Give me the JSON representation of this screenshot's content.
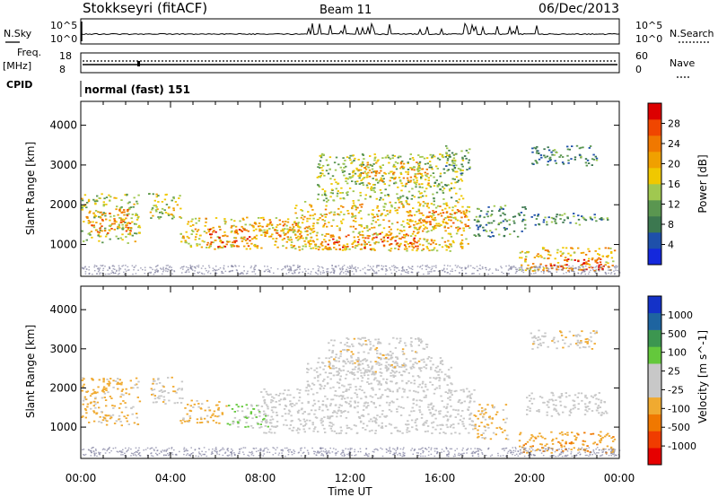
{
  "header": {
    "station": "Stokkseyri (fitACF)",
    "beam": "Beam 11",
    "date": "06/Dec/2013"
  },
  "top_panels": {
    "nsky_label": "N.Sky",
    "nsearch_label": "N.Search",
    "nsky_ticks": [
      "10^5",
      "10^0"
    ],
    "nsky_right_ticks": [
      "10^5",
      "10^0"
    ],
    "freq_label_1": "Freq.",
    "freq_label_2": "[MHz]",
    "freq_ticks": [
      "18",
      "8"
    ],
    "nave_label": "Nave",
    "nave_ticks": [
      "60",
      "0"
    ],
    "cpid_label": "CPID",
    "cpid_value": "normal (fast) 151"
  },
  "colors": {
    "power_scale": [
      "#1428dc",
      "#1e50aa",
      "#3c7850",
      "#5a9650",
      "#a0c850",
      "#f0c800",
      "#f0a000",
      "#f07800",
      "#f04600",
      "#dc0000"
    ],
    "velocity_scale": [
      "#e60000",
      "#f03c00",
      "#f07800",
      "#f0aa30",
      "#c8c8c8",
      "#c8c8c8",
      "#64c83c",
      "#3c9650",
      "#1e64a0",
      "#1432c8"
    ],
    "noise_band": "#8080a0"
  },
  "chart_data": [
    {
      "type": "heatmap",
      "title": "",
      "xlabel": "Time UT",
      "ylabel": "Slant Range [km]",
      "x_ticks": [
        "00:00",
        "04:00",
        "08:00",
        "12:00",
        "16:00",
        "20:00",
        "00:00"
      ],
      "xlim": [
        0,
        24
      ],
      "y_ticks": [
        "1000",
        "2000",
        "3000",
        "4000"
      ],
      "ylim": [
        200,
        4600
      ],
      "colorbar": {
        "label": "Power [dB]",
        "ticks": [
          "4",
          "8",
          "12",
          "16",
          "20",
          "24",
          "28"
        ],
        "range": [
          0,
          30
        ]
      },
      "regions": [
        {
          "t0": 0.0,
          "t1": 2.6,
          "r0": 1050,
          "r1": 2300,
          "value": 14
        },
        {
          "t0": 0.2,
          "t1": 2.2,
          "r0": 1300,
          "r1": 1900,
          "value": 22
        },
        {
          "t0": 3.0,
          "t1": 4.5,
          "r0": 1600,
          "r1": 2300,
          "value": 15
        },
        {
          "t0": 4.4,
          "t1": 10.5,
          "r0": 900,
          "r1": 1700,
          "value": 17
        },
        {
          "t0": 5.5,
          "t1": 7.5,
          "r0": 950,
          "r1": 1400,
          "value": 25
        },
        {
          "t0": 7.6,
          "t1": 9.8,
          "r0": 1200,
          "r1": 1600,
          "value": 21
        },
        {
          "t0": 9.5,
          "t1": 17.3,
          "r0": 850,
          "r1": 2100,
          "value": 17
        },
        {
          "t0": 10.5,
          "t1": 15.0,
          "r0": 900,
          "r1": 1300,
          "value": 23
        },
        {
          "t0": 14.5,
          "t1": 17.3,
          "r0": 1400,
          "r1": 1900,
          "value": 21
        },
        {
          "t0": 10.5,
          "t1": 17.0,
          "r0": 2100,
          "r1": 3300,
          "value": 13
        },
        {
          "t0": 12.3,
          "t1": 15.5,
          "r0": 2500,
          "r1": 3100,
          "value": 19
        },
        {
          "t0": 16.2,
          "t1": 17.3,
          "r0": 2800,
          "r1": 3500,
          "value": 10
        },
        {
          "t0": 17.5,
          "t1": 19.8,
          "r0": 1200,
          "r1": 2000,
          "value": 9
        },
        {
          "t0": 19.5,
          "t1": 23.8,
          "r0": 350,
          "r1": 950,
          "value": 18
        },
        {
          "t0": 20.5,
          "t1": 23.3,
          "r0": 350,
          "r1": 650,
          "value": 27
        },
        {
          "t0": 19.8,
          "t1": 23.5,
          "r0": 1500,
          "r1": 1800,
          "value": 9
        },
        {
          "t0": 20.0,
          "t1": 23.0,
          "r0": 3000,
          "r1": 3500,
          "value": 8
        }
      ]
    },
    {
      "type": "heatmap",
      "title": "",
      "xlabel": "Time UT",
      "ylabel": "Slant Range [km]",
      "x_ticks": [
        "00:00",
        "04:00",
        "08:00",
        "12:00",
        "16:00",
        "20:00",
        "00:00"
      ],
      "xlim": [
        0,
        24
      ],
      "y_ticks": [
        "1000",
        "2000",
        "3000",
        "4000"
      ],
      "ylim": [
        200,
        4600
      ],
      "colorbar": {
        "label": "Velocity [m s^-1]",
        "ticks": [
          "1000",
          "500",
          "100",
          "25",
          "-25",
          "-100",
          "-500",
          "-1000"
        ],
        "range": [
          -1200,
          1200
        ]
      },
      "regions": [
        {
          "t0": 0.0,
          "t1": 2.6,
          "r0": 1050,
          "r1": 2300,
          "value": -300
        },
        {
          "t0": 3.0,
          "t1": 4.5,
          "r0": 1600,
          "r1": 2300,
          "value": -150
        },
        {
          "t0": 4.4,
          "t1": 6.5,
          "r0": 1100,
          "r1": 1700,
          "value": -300
        },
        {
          "t0": 6.5,
          "t1": 8.5,
          "r0": 1000,
          "r1": 1600,
          "value": 200
        },
        {
          "t0": 8.0,
          "t1": 17.5,
          "r0": 850,
          "r1": 2000,
          "value": 0
        },
        {
          "t0": 10.0,
          "t1": 16.5,
          "r0": 2000,
          "r1": 2800,
          "value": 0
        },
        {
          "t0": 11.0,
          "t1": 15.5,
          "r0": 2400,
          "r1": 3300,
          "value": -150
        },
        {
          "t0": 17.5,
          "t1": 19.0,
          "r0": 700,
          "r1": 1600,
          "value": -300
        },
        {
          "t0": 19.5,
          "t1": 23.8,
          "r0": 350,
          "r1": 900,
          "value": -400
        },
        {
          "t0": 19.8,
          "t1": 23.5,
          "r0": 1300,
          "r1": 1900,
          "value": 0
        },
        {
          "t0": 20.0,
          "t1": 23.0,
          "r0": 3000,
          "r1": 3500,
          "value": -150
        }
      ]
    }
  ]
}
